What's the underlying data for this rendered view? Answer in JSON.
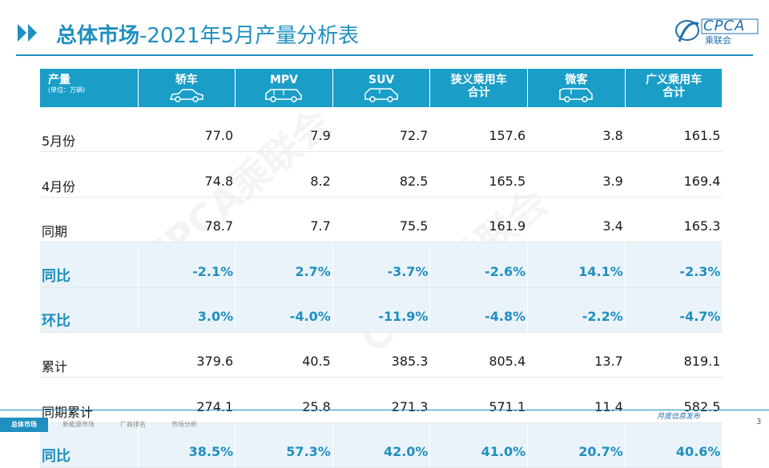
{
  "title": {
    "bold": "总体市场",
    "rest": "-2021年5月产量分析表"
  },
  "logo": {
    "brand": "CPCA",
    "sub": "乘联会"
  },
  "table": {
    "corner": {
      "label": "产量",
      "unit": "(单位：万辆)"
    },
    "columns": [
      {
        "label": "轿车",
        "icon": "sedan-icon"
      },
      {
        "label": "MPV",
        "icon": "mpv-icon"
      },
      {
        "label": "SUV",
        "icon": "suv-icon"
      },
      {
        "label": "狭义乘用车合计",
        "line1": "狭义乘用车",
        "line2": "合计"
      },
      {
        "label": "微客",
        "icon": "minivan-icon"
      },
      {
        "label": "广义乘用车合计",
        "line1": "广义乘用车",
        "line2": "合计"
      }
    ],
    "rows": [
      {
        "label": "5月份",
        "values": [
          "77.0",
          "7.9",
          "72.7",
          "157.6",
          "3.8",
          "161.5"
        ],
        "pct": false
      },
      {
        "label": "4月份",
        "values": [
          "74.8",
          "8.2",
          "82.5",
          "165.5",
          "3.9",
          "169.4"
        ],
        "pct": false
      },
      {
        "label": "同期",
        "values": [
          "78.7",
          "7.7",
          "75.5",
          "161.9",
          "3.4",
          "165.3"
        ],
        "pct": false
      },
      {
        "label": "同比",
        "values": [
          "-2.1%",
          "2.7%",
          "-3.7%",
          "-2.6%",
          "14.1%",
          "-2.3%"
        ],
        "pct": true
      },
      {
        "label": "环比",
        "values": [
          "3.0%",
          "-4.0%",
          "-11.9%",
          "-4.8%",
          "-2.2%",
          "-4.7%"
        ],
        "pct": true
      },
      {
        "label": "累计",
        "values": [
          "379.6",
          "40.5",
          "385.3",
          "805.4",
          "13.7",
          "819.1"
        ],
        "pct": false
      },
      {
        "label": "同期累计",
        "values": [
          "274.1",
          "25.8",
          "271.3",
          "571.1",
          "11.4",
          "582.5"
        ],
        "pct": false
      },
      {
        "label": "同比",
        "values": [
          "38.5%",
          "57.3%",
          "42.0%",
          "41.0%",
          "20.7%",
          "40.6%"
        ],
        "pct": true
      }
    ]
  },
  "footer": {
    "tabs": [
      "总体市场",
      "新能源市场",
      "厂商排名",
      "市场分析"
    ],
    "active_tab": 0,
    "monthly": "月度信息发布",
    "page": "3"
  },
  "colors": {
    "accent": "#1f8fbf",
    "header": "#1a9ec8",
    "pct_row": "#eaf3f9"
  }
}
